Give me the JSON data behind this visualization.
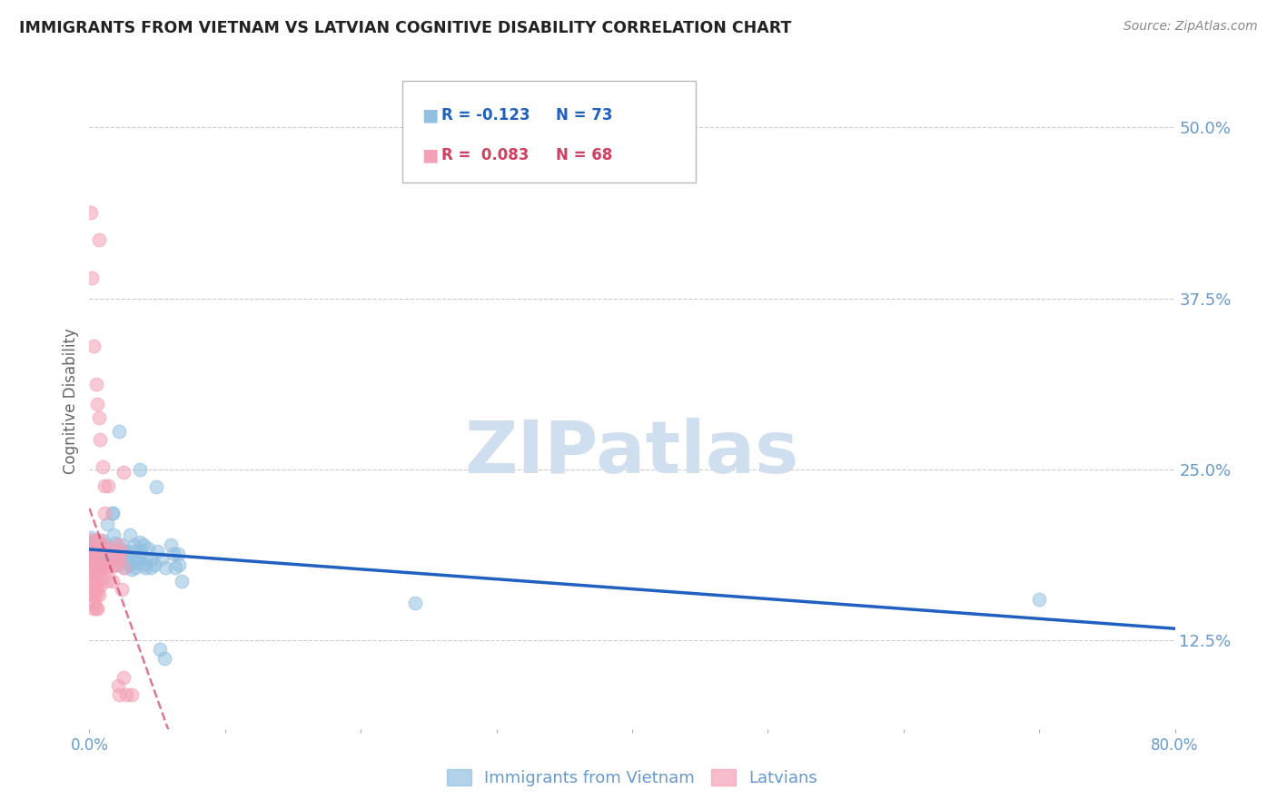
{
  "title": "IMMIGRANTS FROM VIETNAM VS LATVIAN COGNITIVE DISABILITY CORRELATION CHART",
  "source": "Source: ZipAtlas.com",
  "ylabel": "Cognitive Disability",
  "right_yticks": [
    "50.0%",
    "37.5%",
    "25.0%",
    "12.5%"
  ],
  "right_ytick_vals": [
    0.5,
    0.375,
    0.25,
    0.125
  ],
  "blue_color": "#92c0e0",
  "pink_color": "#f4a0b5",
  "trendline_blue": "#2060c0",
  "trendline_pink": "#d04060",
  "background_color": "#ffffff",
  "grid_color": "#cccccc",
  "title_color": "#222222",
  "axis_label_color": "#666666",
  "right_axis_color": "#6699cc",
  "watermark_color": "#d0dff0",
  "blue_scatter": [
    [
      0.001,
      0.2
    ],
    [
      0.002,
      0.195
    ],
    [
      0.002,
      0.185
    ],
    [
      0.003,
      0.192
    ],
    [
      0.003,
      0.18
    ],
    [
      0.004,
      0.198
    ],
    [
      0.004,
      0.183
    ],
    [
      0.005,
      0.195
    ],
    [
      0.005,
      0.188
    ],
    [
      0.006,
      0.193
    ],
    [
      0.006,
      0.182
    ],
    [
      0.007,
      0.197
    ],
    [
      0.007,
      0.185
    ],
    [
      0.008,
      0.19
    ],
    [
      0.008,
      0.195
    ],
    [
      0.009,
      0.188
    ],
    [
      0.009,
      0.18
    ],
    [
      0.01,
      0.185
    ],
    [
      0.01,
      0.198
    ],
    [
      0.011,
      0.182
    ],
    [
      0.012,
      0.195
    ],
    [
      0.013,
      0.21
    ],
    [
      0.014,
      0.188
    ],
    [
      0.015,
      0.192
    ],
    [
      0.016,
      0.185
    ],
    [
      0.017,
      0.218
    ],
    [
      0.018,
      0.202
    ],
    [
      0.019,
      0.196
    ],
    [
      0.02,
      0.188
    ],
    [
      0.021,
      0.18
    ],
    [
      0.022,
      0.192
    ],
    [
      0.023,
      0.186
    ],
    [
      0.024,
      0.195
    ],
    [
      0.025,
      0.19
    ],
    [
      0.026,
      0.178
    ],
    [
      0.027,
      0.185
    ],
    [
      0.028,
      0.19
    ],
    [
      0.03,
      0.202
    ],
    [
      0.03,
      0.18
    ],
    [
      0.031,
      0.177
    ],
    [
      0.032,
      0.184
    ],
    [
      0.033,
      0.19
    ],
    [
      0.033,
      0.195
    ],
    [
      0.034,
      0.178
    ],
    [
      0.035,
      0.182
    ],
    [
      0.036,
      0.186
    ],
    [
      0.037,
      0.197
    ],
    [
      0.038,
      0.19
    ],
    [
      0.04,
      0.18
    ],
    [
      0.04,
      0.195
    ],
    [
      0.041,
      0.178
    ],
    [
      0.042,
      0.185
    ],
    [
      0.043,
      0.192
    ],
    [
      0.045,
      0.178
    ],
    [
      0.046,
      0.184
    ],
    [
      0.048,
      0.18
    ],
    [
      0.05,
      0.19
    ],
    [
      0.053,
      0.185
    ],
    [
      0.056,
      0.178
    ],
    [
      0.06,
      0.195
    ],
    [
      0.062,
      0.188
    ],
    [
      0.063,
      0.178
    ],
    [
      0.065,
      0.188
    ],
    [
      0.066,
      0.18
    ],
    [
      0.022,
      0.278
    ],
    [
      0.037,
      0.25
    ],
    [
      0.049,
      0.237
    ],
    [
      0.017,
      0.218
    ],
    [
      0.052,
      0.118
    ],
    [
      0.055,
      0.112
    ],
    [
      0.068,
      0.168
    ],
    [
      0.7,
      0.155
    ],
    [
      0.24,
      0.152
    ]
  ],
  "pink_scatter": [
    [
      0.001,
      0.192
    ],
    [
      0.001,
      0.186
    ],
    [
      0.001,
      0.178
    ],
    [
      0.001,
      0.168
    ],
    [
      0.002,
      0.198
    ],
    [
      0.002,
      0.183
    ],
    [
      0.002,
      0.173
    ],
    [
      0.002,
      0.158
    ],
    [
      0.003,
      0.188
    ],
    [
      0.003,
      0.178
    ],
    [
      0.003,
      0.168
    ],
    [
      0.003,
      0.158
    ],
    [
      0.003,
      0.148
    ],
    [
      0.004,
      0.182
    ],
    [
      0.004,
      0.172
    ],
    [
      0.004,
      0.162
    ],
    [
      0.004,
      0.152
    ],
    [
      0.005,
      0.198
    ],
    [
      0.005,
      0.178
    ],
    [
      0.005,
      0.168
    ],
    [
      0.005,
      0.158
    ],
    [
      0.005,
      0.148
    ],
    [
      0.006,
      0.192
    ],
    [
      0.006,
      0.178
    ],
    [
      0.006,
      0.162
    ],
    [
      0.006,
      0.148
    ],
    [
      0.007,
      0.188
    ],
    [
      0.007,
      0.172
    ],
    [
      0.007,
      0.158
    ],
    [
      0.008,
      0.198
    ],
    [
      0.008,
      0.18
    ],
    [
      0.008,
      0.165
    ],
    [
      0.009,
      0.188
    ],
    [
      0.009,
      0.17
    ],
    [
      0.01,
      0.195
    ],
    [
      0.01,
      0.178
    ],
    [
      0.012,
      0.178
    ],
    [
      0.013,
      0.168
    ],
    [
      0.014,
      0.18
    ],
    [
      0.015,
      0.192
    ],
    [
      0.016,
      0.178
    ],
    [
      0.017,
      0.168
    ],
    [
      0.018,
      0.19
    ],
    [
      0.019,
      0.18
    ],
    [
      0.02,
      0.185
    ],
    [
      0.021,
      0.195
    ],
    [
      0.022,
      0.185
    ],
    [
      0.023,
      0.19
    ],
    [
      0.024,
      0.162
    ],
    [
      0.025,
      0.178
    ],
    [
      0.011,
      0.238
    ],
    [
      0.011,
      0.218
    ],
    [
      0.002,
      0.39
    ],
    [
      0.003,
      0.34
    ],
    [
      0.005,
      0.312
    ],
    [
      0.006,
      0.298
    ],
    [
      0.007,
      0.288
    ],
    [
      0.008,
      0.272
    ],
    [
      0.01,
      0.252
    ],
    [
      0.025,
      0.248
    ],
    [
      0.014,
      0.238
    ],
    [
      0.001,
      0.438
    ],
    [
      0.007,
      0.418
    ],
    [
      0.025,
      0.098
    ],
    [
      0.027,
      0.085
    ],
    [
      0.031,
      0.085
    ],
    [
      0.021,
      0.092
    ],
    [
      0.022,
      0.085
    ]
  ],
  "xlim": [
    0.0,
    0.8
  ],
  "ylim": [
    0.06,
    0.54
  ],
  "figsize": [
    14.06,
    8.92
  ],
  "dpi": 100
}
